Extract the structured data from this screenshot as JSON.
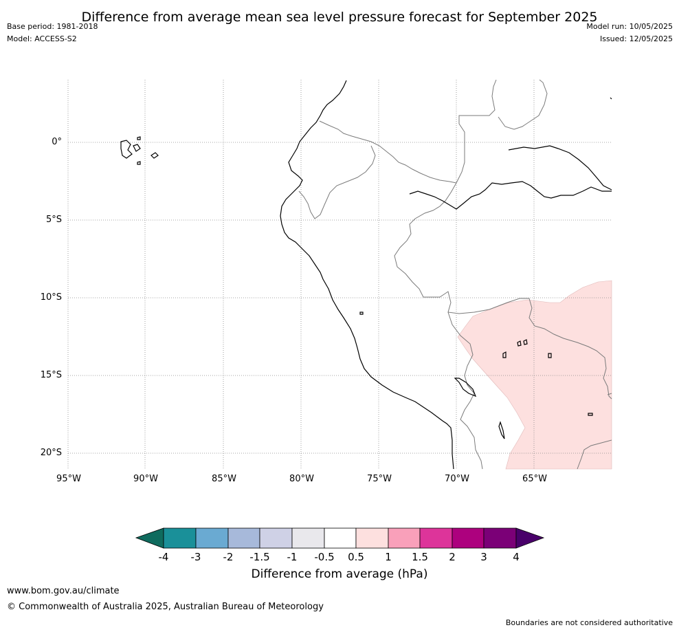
{
  "title": "Difference from average mean sea level pressure forecast for September 2025",
  "base_period": "Base period: 1981-2018",
  "model": "Model: ACCESS-S2",
  "model_run": "Model run: 10/05/2025",
  "issued": "Issued: 12/05/2025",
  "map": {
    "lat_labels": [
      "0°",
      "5°S",
      "10°S",
      "15°S",
      "20°S"
    ],
    "lon_labels": [
      "95°W",
      "90°W",
      "85°W",
      "80°W",
      "75°W",
      "70°W",
      "65°W"
    ],
    "anomaly_region": {
      "category": "0.5 to 1",
      "color": "#fde0df"
    }
  },
  "colorbar": {
    "tick_labels": [
      "-4",
      "-3",
      "-2",
      "-1.5",
      "-1",
      "-0.5",
      "0.5",
      "1",
      "1.5",
      "2",
      "3",
      "4"
    ],
    "colors": [
      "#1a9099",
      "#6aaad2",
      "#a7b9da",
      "#cfd1e6",
      "#e9e8ec",
      "#ffffff",
      "#fde0df",
      "#f9a0ba",
      "#dd349a",
      "#ad017e",
      "#7b0077"
    ],
    "under_color": "#0f6b5e",
    "over_color": "#49006a",
    "title": "Difference from average (hPa)"
  },
  "footer": {
    "url": "www.bom.gov.au/climate",
    "copyright": "© Commonwealth of Australia 2025, Australian Bureau of Meteorology",
    "disclaimer": "Boundaries are not considered authoritative"
  }
}
